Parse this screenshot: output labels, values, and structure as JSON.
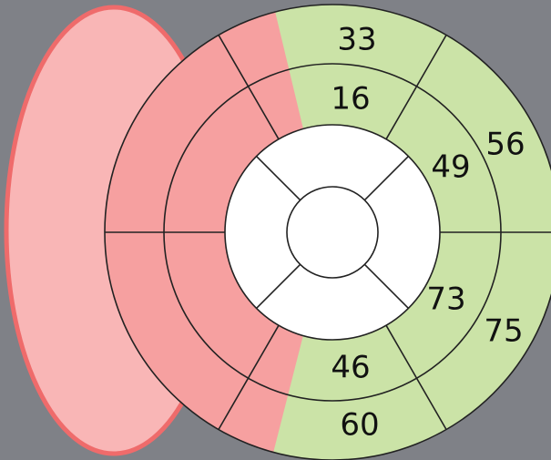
{
  "outer_ring": [
    "33",
    "56",
    "75",
    "60"
  ],
  "middle_ring": [
    "16",
    "49",
    "73",
    "46"
  ]
}
